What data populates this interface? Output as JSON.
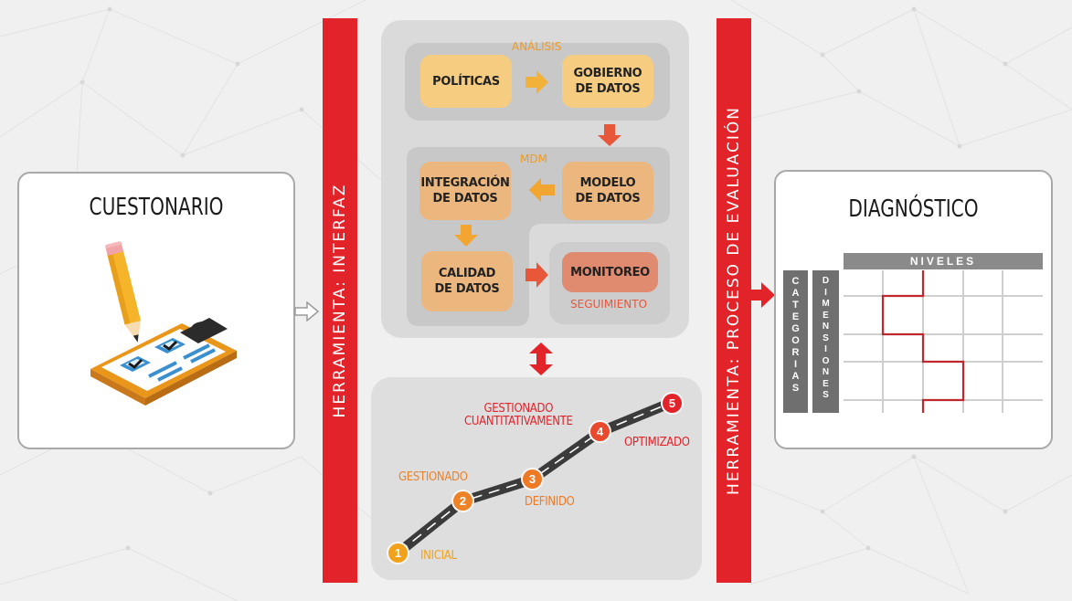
{
  "left_card": {
    "title": "CUESTONARIO",
    "icon": "clipboard-pencil-icon"
  },
  "left_bar": {
    "text": "HERRAMIENTA: INTERFAZ",
    "color": "#e3232a"
  },
  "right_bar": {
    "text": "HERRAMIENTA: PROCESO DE EVALUACIÓN",
    "color": "#e3232a"
  },
  "process": {
    "analysis_label": "ANÁLISIS",
    "mdm_label": "MDM",
    "boxes": {
      "politicas": "POLÍTICAS",
      "gobierno": "GOBIERNO\nDE DATOS",
      "integracion": "INTEGRACIÓN\nDE DATOS",
      "modelo": "MODELO\nDE DATOS",
      "calidad": "CALIDAD\nDE DATOS",
      "monitoreo": "MONITOREO"
    },
    "seguimiento_label": "SEGUIMIENTO"
  },
  "maturity": {
    "stages": [
      {
        "number": "1",
        "label": "INICIAL",
        "color": "#f2a21a"
      },
      {
        "number": "2",
        "label": "GESTIONADO",
        "color": "#ee8227"
      },
      {
        "number": "3",
        "label": "DEFINIDO",
        "color": "#ee7a26"
      },
      {
        "number": "4",
        "label": "GESTIONADO\nCUANTITATIVAMENTE",
        "color": "#e9492c"
      },
      {
        "number": "5",
        "label": "OPTIMIZADO",
        "color": "#e3232a"
      }
    ]
  },
  "right_card": {
    "title": "DIAGNÓSTICO",
    "matrix": {
      "header": "NIVELES",
      "row_label_1": "CATEGORIAS",
      "row_label_2": "DIMENSIONES"
    }
  },
  "colors": {
    "accent_red": "#e3232a",
    "yellow": "#f6cd80",
    "orange": "#ecb77e",
    "salmon": "#e08a6f",
    "label_orange": "#ee7a26"
  }
}
